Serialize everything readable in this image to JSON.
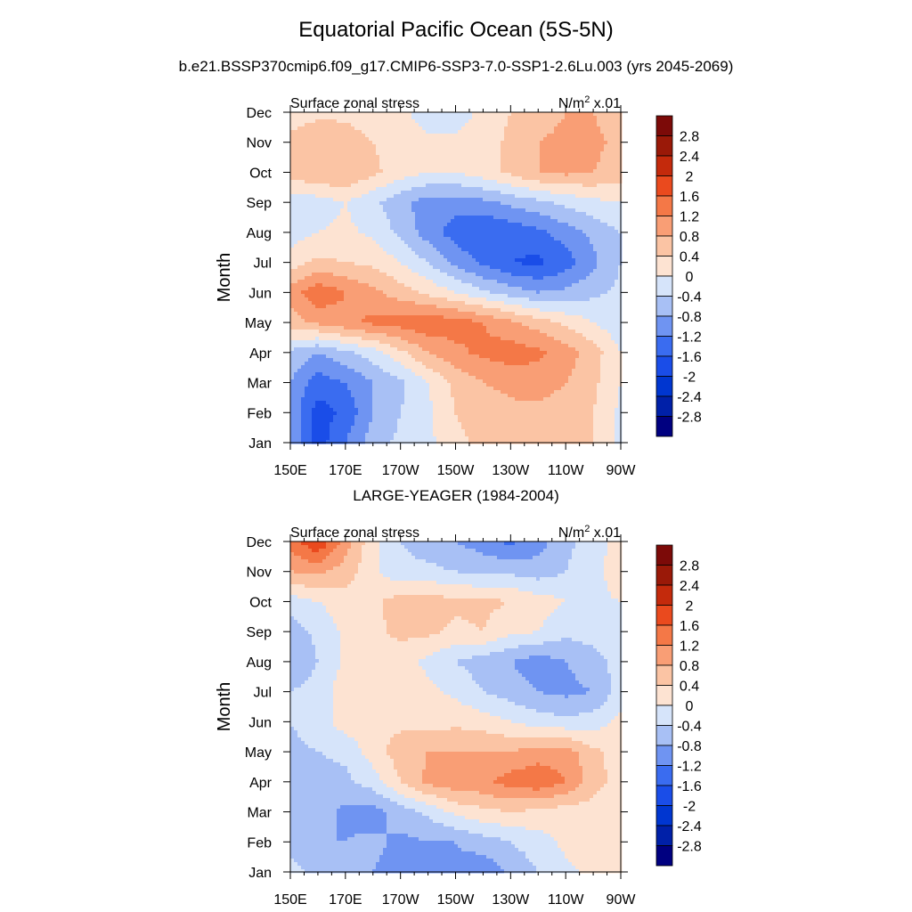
{
  "figure": {
    "title": "Equatorial Pacific Ocean (5S-5N)",
    "top_panel_title": "b.e21.BSSP370cmip6.f09_g17.CMIP6-SSP3-7.0-SSP1-2.6Lu.003 (yrs 2045-2069)",
    "bottom_panel_title": "LARGE-YEAGER (1984-2004)"
  },
  "chart_data": [
    {
      "type": "heatmap",
      "title": "b.e21.BSSP370cmip6.f09_g17.CMIP6-SSP3-7.0-SSP1-2.6Lu.003 (yrs 2045-2069)",
      "left_label": "Surface zonal stress",
      "units_label": "N/m",
      "units_sup": "2",
      "units_suffix": " x.01",
      "ylabel": "Month",
      "xlabel": "",
      "x_ticks": [
        "150E",
        "170E",
        "170W",
        "150W",
        "130W",
        "110W",
        "90W"
      ],
      "y_ticks": [
        "Jan",
        "Feb",
        "Mar",
        "Apr",
        "May",
        "Jun",
        "Jul",
        "Aug",
        "Sep",
        "Oct",
        "Nov",
        "Dec"
      ],
      "x_range_deg_east": [
        150,
        270
      ],
      "x": [
        150,
        160,
        170,
        180,
        190,
        200,
        210,
        220,
        230,
        240,
        250,
        260,
        270
      ],
      "y": [
        "Jan",
        "Feb",
        "Mar",
        "Apr",
        "May",
        "Jun",
        "Jul",
        "Aug",
        "Sep",
        "Oct",
        "Nov",
        "Dec"
      ],
      "values": [
        [
          -0.8,
          -1.8,
          -1.2,
          -0.6,
          -0.3,
          -0.1,
          0.3,
          0.5,
          0.6,
          0.6,
          0.6,
          0.4,
          -0.1
        ],
        [
          -0.9,
          -1.8,
          -1.5,
          -0.8,
          -0.4,
          -0.1,
          0.4,
          0.6,
          0.7,
          0.7,
          0.6,
          0.4,
          -0.1
        ],
        [
          -0.8,
          -1.4,
          -1.2,
          -0.8,
          -0.5,
          0.0,
          0.5,
          0.8,
          0.9,
          1.0,
          0.8,
          0.5,
          0.0
        ],
        [
          -0.5,
          -0.8,
          -0.5,
          -0.2,
          0.3,
          0.8,
          1.1,
          1.3,
          1.4,
          1.3,
          1.0,
          0.6,
          0.0
        ],
        [
          0.6,
          0.9,
          1.1,
          1.3,
          1.4,
          1.5,
          1.4,
          1.2,
          0.9,
          0.6,
          0.3,
          0.0,
          -0.3
        ],
        [
          1.0,
          1.5,
          1.2,
          0.9,
          0.6,
          0.3,
          0.0,
          -0.3,
          -0.6,
          -0.8,
          -0.7,
          -0.5,
          -0.3
        ],
        [
          0.2,
          0.5,
          0.4,
          0.3,
          0.0,
          -0.4,
          -0.9,
          -1.3,
          -1.6,
          -1.7,
          -1.4,
          -0.9,
          -0.4
        ],
        [
          -0.2,
          0.0,
          0.1,
          -0.1,
          -0.5,
          -1.0,
          -1.4,
          -1.6,
          -1.5,
          -1.3,
          -1.0,
          -0.7,
          -0.4
        ],
        [
          -0.3,
          -0.2,
          0.0,
          -0.3,
          -0.7,
          -1.0,
          -1.0,
          -0.9,
          -0.7,
          -0.5,
          -0.3,
          -0.1,
          0.0
        ],
        [
          0.6,
          0.8,
          0.8,
          0.5,
          0.2,
          0.0,
          0.0,
          0.2,
          0.5,
          0.8,
          0.9,
          0.8,
          0.6
        ],
        [
          0.5,
          0.7,
          0.6,
          0.4,
          0.2,
          0.1,
          0.1,
          0.2,
          0.5,
          0.8,
          0.9,
          0.9,
          0.7
        ],
        [
          0.2,
          0.3,
          0.3,
          0.2,
          0.1,
          -0.2,
          -0.2,
          0.1,
          0.4,
          0.6,
          0.8,
          0.8,
          0.5
        ]
      ],
      "contour_levels": [
        -2.8,
        -2.4,
        -2.0,
        -1.6,
        -1.2,
        -0.8,
        -0.4,
        0.0,
        0.4,
        0.8,
        1.2,
        1.6,
        2.0,
        2.4,
        2.8
      ]
    },
    {
      "type": "heatmap",
      "title": "LARGE-YEAGER (1984-2004)",
      "left_label": "Surface zonal stress",
      "units_label": "N/m",
      "units_sup": "2",
      "units_suffix": " x.01",
      "ylabel": "Month",
      "xlabel": "",
      "x_ticks": [
        "150E",
        "170E",
        "170W",
        "150W",
        "130W",
        "110W",
        "90W"
      ],
      "y_ticks": [
        "Jan",
        "Feb",
        "Mar",
        "Apr",
        "May",
        "Jun",
        "Jul",
        "Aug",
        "Sep",
        "Oct",
        "Nov",
        "Dec"
      ],
      "x_range_deg_east": [
        150,
        270
      ],
      "x": [
        150,
        160,
        170,
        180,
        190,
        200,
        210,
        220,
        230,
        240,
        250,
        260,
        270
      ],
      "y": [
        "Jan",
        "Feb",
        "Mar",
        "Apr",
        "May",
        "Jun",
        "Jul",
        "Aug",
        "Sep",
        "Oct",
        "Nov",
        "Dec"
      ],
      "values": [
        [
          -0.3,
          -0.5,
          -0.6,
          -0.8,
          -1.0,
          -1.2,
          -0.9,
          -1.1,
          -0.7,
          -0.4,
          -0.1,
          0.1,
          0.2
        ],
        [
          -0.5,
          -0.8,
          -0.8,
          -0.7,
          -0.9,
          -0.8,
          -0.8,
          -0.6,
          -0.4,
          -0.2,
          0.1,
          0.2,
          0.2
        ],
        [
          -0.4,
          -0.6,
          -0.9,
          -1.0,
          -0.6,
          -0.3,
          0.1,
          0.3,
          0.4,
          0.3,
          0.2,
          0.2,
          0.1
        ],
        [
          -0.5,
          -0.6,
          -0.5,
          -0.2,
          0.4,
          0.9,
          1.1,
          1.1,
          1.4,
          1.5,
          1.2,
          0.6,
          0.2
        ],
        [
          -0.5,
          -0.4,
          -0.3,
          0.2,
          0.6,
          0.8,
          0.8,
          0.8,
          0.8,
          1.0,
          1.0,
          0.5,
          0.2
        ],
        [
          -0.4,
          -0.2,
          0.2,
          0.3,
          0.3,
          0.2,
          0.3,
          0.2,
          0.0,
          -0.2,
          -0.3,
          -0.2,
          0.1
        ],
        [
          -0.4,
          -0.2,
          0.2,
          0.3,
          0.3,
          0.1,
          -0.1,
          -0.4,
          -0.6,
          -0.8,
          -0.9,
          -0.8,
          -0.2
        ],
        [
          -0.8,
          -0.4,
          0.1,
          0.3,
          0.2,
          -0.1,
          -0.4,
          -0.6,
          -0.8,
          -1.0,
          -0.8,
          -0.6,
          -0.2
        ],
        [
          -0.6,
          -0.3,
          0.1,
          0.3,
          0.5,
          0.5,
          0.3,
          0.4,
          0.1,
          0.0,
          -0.3,
          -0.2,
          0.0
        ],
        [
          -0.2,
          0.0,
          0.2,
          0.3,
          0.6,
          0.6,
          0.5,
          0.5,
          0.4,
          0.2,
          0.0,
          -0.1,
          0.0
        ],
        [
          0.8,
          0.9,
          0.6,
          0.1,
          -0.3,
          -0.3,
          -0.4,
          -0.5,
          -0.5,
          -0.6,
          -0.4,
          -0.2,
          0.3
        ],
        [
          1.4,
          2.0,
          1.0,
          0.1,
          -0.4,
          -0.6,
          -0.8,
          -1.0,
          -1.3,
          -1.0,
          -0.5,
          -0.2,
          0.2
        ]
      ],
      "contour_levels": [
        -2.8,
        -2.4,
        -2.0,
        -1.6,
        -1.2,
        -0.8,
        -0.4,
        0.0,
        0.4,
        0.8,
        1.2,
        1.6,
        2.0,
        2.4,
        2.8
      ]
    }
  ],
  "colorbar": {
    "labels": [
      "2.8",
      "2.4",
      "2",
      "1.6",
      "1.2",
      "0.8",
      "0.4",
      "0",
      "-0.4",
      "-0.8",
      "-1.2",
      "-1.6",
      "-2",
      "-2.4",
      "-2.8"
    ],
    "colors": [
      "#000080",
      "#0020a8",
      "#0036d0",
      "#1a4de8",
      "#3a6cf0",
      "#6f94f2",
      "#a8c0f5",
      "#d6e4fa",
      "#fde3d2",
      "#fbc4a4",
      "#f99e75",
      "#f47847",
      "#ea4a1e",
      "#c42a0c",
      "#9a1908",
      "#7c0a08"
    ]
  }
}
